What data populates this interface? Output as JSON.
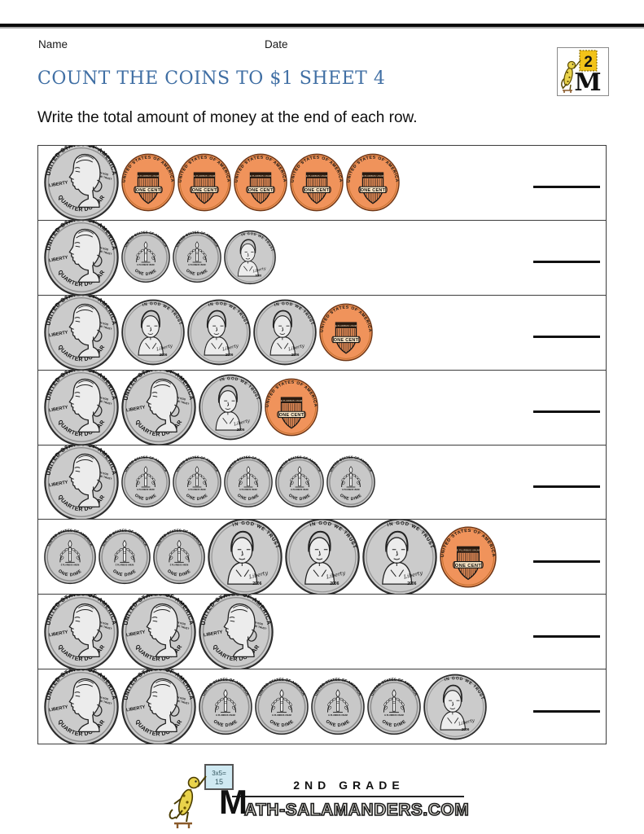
{
  "header": {
    "name_label": "Name",
    "date_label": "Date",
    "badge_number": "2",
    "title": "COUNT THE COINS TO $1 SHEET 4",
    "instruction": "Write the total amount of money at the end of each row."
  },
  "coin_types": {
    "quarter": {
      "name": "quarter",
      "value_cents": 25,
      "side": "heads",
      "top_text": "UNITED STATES OF AMERICA",
      "left_text": "LIBERTY",
      "right_text": "IN GOD WE TRUST",
      "bottom_text": "QUARTER DOLLAR"
    },
    "nickel": {
      "name": "nickel",
      "value_cents": 5,
      "side": "heads",
      "top_text": "IN GOD WE TRUST",
      "script_text": "Liberty",
      "year_text": "2006"
    },
    "dime": {
      "name": "dime",
      "value_cents": 10,
      "side": "tails",
      "top_text": "UNITED STATES OF AMERICA",
      "middle_text": "E PLURIBUS UNUM",
      "bottom_text": "ONE DIME"
    },
    "penny": {
      "name": "penny",
      "value_cents": 1,
      "side": "tails",
      "top_text": "UNITED STATES OF AMERICA",
      "banner_text": "E PLURIBUS UNUM",
      "bottom_text": "ONE CENT"
    }
  },
  "rows": [
    {
      "coins": [
        "quarter",
        "penny",
        "penny",
        "penny",
        "penny",
        "penny"
      ]
    },
    {
      "coins": [
        "quarter",
        "dime",
        "dime",
        "nickel"
      ]
    },
    {
      "coins": [
        "quarter",
        "nickel",
        "nickel",
        "nickel",
        "penny"
      ]
    },
    {
      "coins": [
        "quarter",
        "quarter",
        "nickel",
        "penny"
      ]
    },
    {
      "coins": [
        "quarter",
        "dime",
        "dime",
        "dime",
        "dime",
        "dime"
      ]
    },
    {
      "coins": [
        "dime",
        "dime",
        "dime",
        "nickel",
        "nickel",
        "nickel",
        "penny"
      ]
    },
    {
      "coins": [
        "quarter",
        "quarter",
        "quarter"
      ]
    },
    {
      "coins": [
        "quarter",
        "quarter",
        "dime",
        "dime",
        "dime",
        "dime",
        "nickel"
      ]
    }
  ],
  "footer": {
    "grade_text": "2ND GRADE",
    "site_big_letter": "M",
    "site_rest": "ATH-SALAMANDERS.COM",
    "board_line1": "3x5=",
    "board_line2": "15"
  },
  "colors": {
    "title_blue": "#406fa4",
    "penny_orange": "#F0935B",
    "coin_silver": "#cbcbcb",
    "line_black": "#111111"
  }
}
